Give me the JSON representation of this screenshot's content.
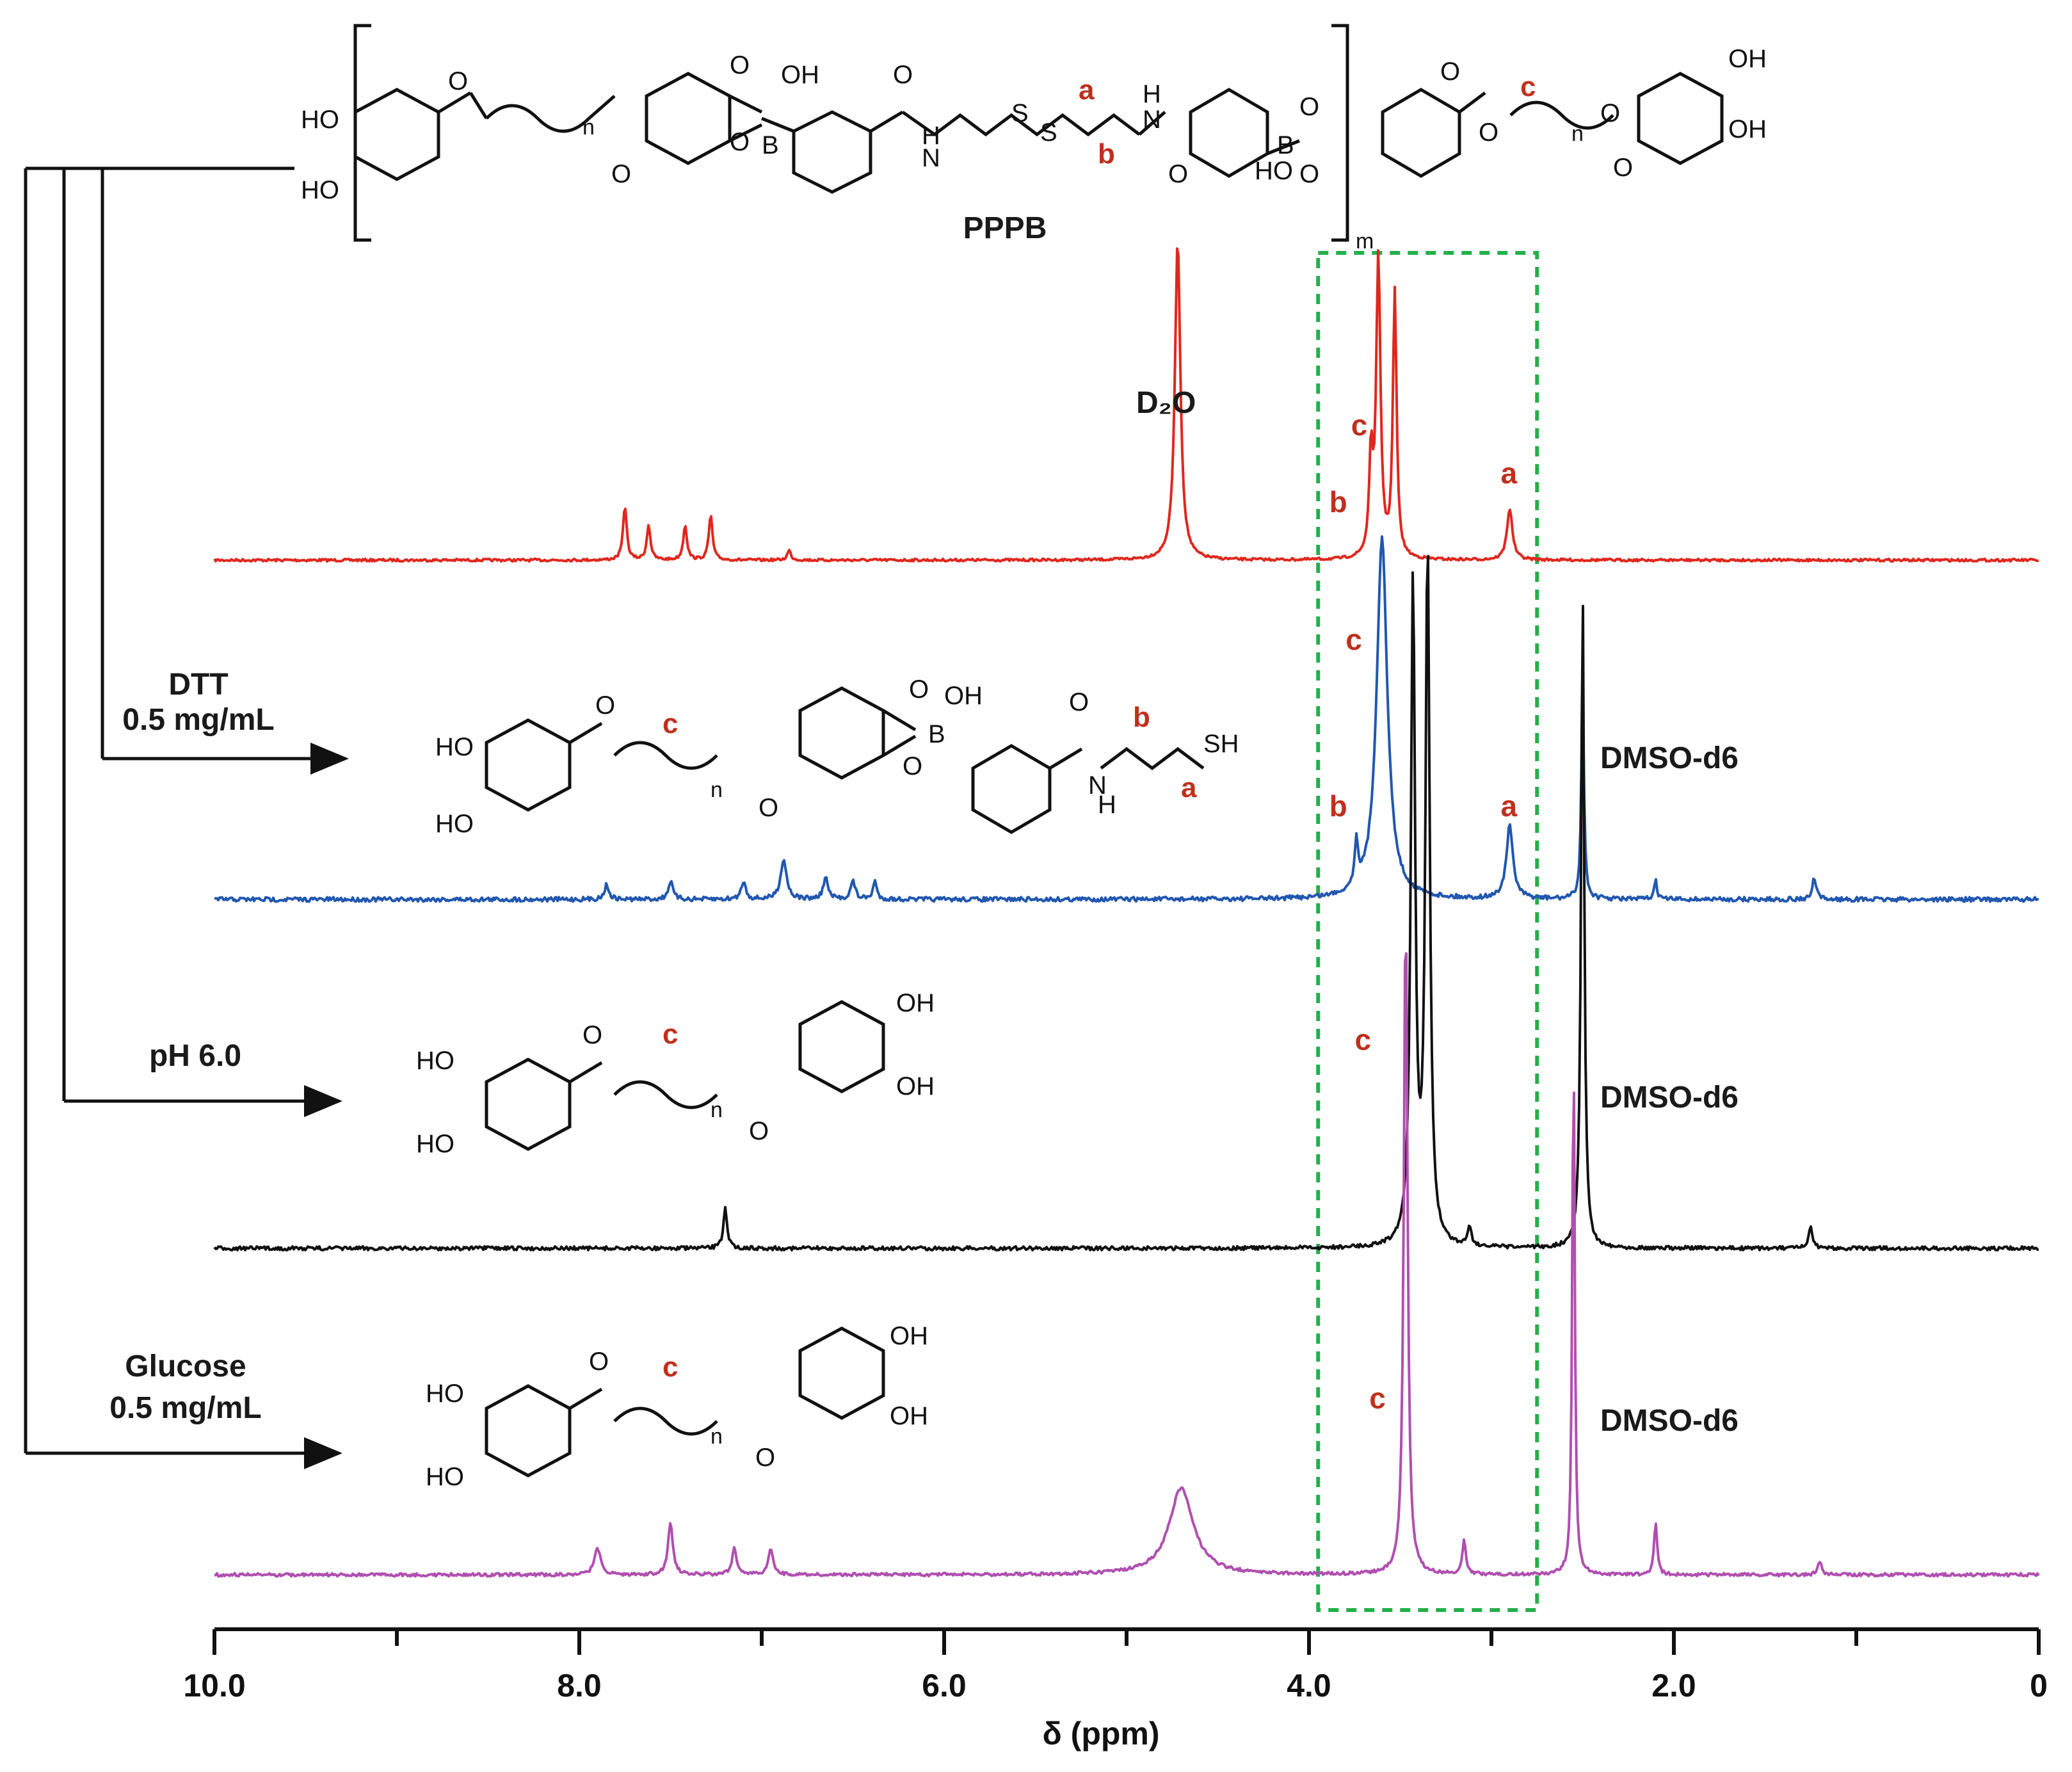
{
  "chart_data": {
    "type": "line",
    "title": "",
    "xlabel": "δ (ppm)",
    "ylabel": "",
    "xlim": [
      10.0,
      0
    ],
    "x_reversed": true,
    "x_ticks": [
      10.0,
      8.0,
      6.0,
      4.0,
      2.0,
      0
    ],
    "x_tick_labels": [
      "10.0",
      "8.0",
      "6.0",
      "4.0",
      "2.0",
      "0"
    ],
    "highlight_box_ppm": [
      3.95,
      2.75
    ],
    "highlight_color": "#22b04a",
    "grid": false,
    "legend": "none",
    "series": [
      {
        "condition": "",
        "compound": "PPPB",
        "solvent": "D₂O",
        "color": "#e0271d",
        "peaks": [
          {
            "ppm": 7.75,
            "height": 0.17,
            "width": 0.012
          },
          {
            "ppm": 7.62,
            "height": 0.11,
            "width": 0.012
          },
          {
            "ppm": 7.42,
            "height": 0.11,
            "width": 0.012
          },
          {
            "ppm": 7.28,
            "height": 0.14,
            "width": 0.012
          },
          {
            "ppm": 6.85,
            "height": 0.03,
            "width": 0.012
          },
          {
            "ppm": 4.72,
            "height": 1.0,
            "width": 0.018
          },
          {
            "ppm": 3.62,
            "height": 0.93,
            "width": 0.014
          },
          {
            "ppm": 3.53,
            "height": 0.83,
            "width": 0.012
          },
          {
            "ppm": 3.66,
            "height": 0.3,
            "width": 0.012
          },
          {
            "ppm": 2.9,
            "height": 0.16,
            "width": 0.018
          }
        ],
        "annotations": [
          {
            "text": "c",
            "ppm": 3.72
          },
          {
            "text": "b",
            "ppm": 3.84
          },
          {
            "text": "a",
            "ppm": 2.9
          }
        ]
      },
      {
        "condition": "DTT 0.5 mg/mL",
        "solvent": "DMSO-d6",
        "color": "#2157b0",
        "peaks": [
          {
            "ppm": 7.85,
            "height": 0.04,
            "width": 0.015
          },
          {
            "ppm": 7.5,
            "height": 0.05,
            "width": 0.015
          },
          {
            "ppm": 7.1,
            "height": 0.05,
            "width": 0.015
          },
          {
            "ppm": 6.88,
            "height": 0.11,
            "width": 0.02
          },
          {
            "ppm": 6.65,
            "height": 0.06,
            "width": 0.015
          },
          {
            "ppm": 6.5,
            "height": 0.05,
            "width": 0.015
          },
          {
            "ppm": 6.38,
            "height": 0.05,
            "width": 0.012
          },
          {
            "ppm": 3.6,
            "height": 1.0,
            "width": 0.035
          },
          {
            "ppm": 3.74,
            "height": 0.12,
            "width": 0.012
          },
          {
            "ppm": 2.9,
            "height": 0.2,
            "width": 0.022
          },
          {
            "ppm": 2.5,
            "height": 0.55,
            "width": 0.009
          },
          {
            "ppm": 2.1,
            "height": 0.05,
            "width": 0.01
          },
          {
            "ppm": 1.23,
            "height": 0.06,
            "width": 0.012
          }
        ],
        "annotations": [
          {
            "text": "c",
            "ppm": 3.75
          },
          {
            "text": "b",
            "ppm": 3.84
          },
          {
            "text": "a",
            "ppm": 2.9
          }
        ]
      },
      {
        "condition": "pH 6.0",
        "solvent": "DMSO-d6",
        "color": "#111111",
        "peaks": [
          {
            "ppm": 3.43,
            "height": 0.95,
            "width": 0.014
          },
          {
            "ppm": 3.35,
            "height": 1.0,
            "width": 0.014
          },
          {
            "ppm": 2.5,
            "height": 0.95,
            "width": 0.01
          },
          {
            "ppm": 7.2,
            "height": 0.06,
            "width": 0.012
          },
          {
            "ppm": 3.12,
            "height": 0.03,
            "width": 0.012
          },
          {
            "ppm": 1.25,
            "height": 0.03,
            "width": 0.012
          }
        ],
        "annotations": [
          {
            "text": "c",
            "ppm": 3.7
          }
        ]
      },
      {
        "condition": "Glucose 0.5 mg/mL",
        "solvent": "DMSO-d6",
        "color": "#b04fb0",
        "peaks": [
          {
            "ppm": 7.9,
            "height": 0.04,
            "width": 0.02
          },
          {
            "ppm": 7.5,
            "height": 0.08,
            "width": 0.015
          },
          {
            "ppm": 7.15,
            "height": 0.04,
            "width": 0.015
          },
          {
            "ppm": 6.95,
            "height": 0.04,
            "width": 0.015
          },
          {
            "ppm": 4.7,
            "height": 0.13,
            "width": 0.08
          },
          {
            "ppm": 3.47,
            "height": 1.0,
            "width": 0.012
          },
          {
            "ppm": 3.15,
            "height": 0.05,
            "width": 0.012
          },
          {
            "ppm": 2.55,
            "height": 0.8,
            "width": 0.008
          },
          {
            "ppm": 2.1,
            "height": 0.08,
            "width": 0.01
          },
          {
            "ppm": 1.2,
            "height": 0.02,
            "width": 0.012
          }
        ],
        "annotations": [
          {
            "text": "c",
            "ppm": 3.62
          }
        ]
      }
    ]
  }
}
